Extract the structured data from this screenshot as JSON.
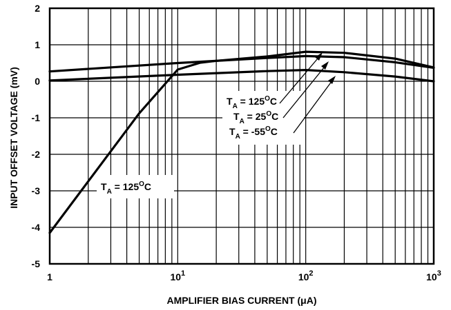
{
  "chart_data": {
    "type": "line",
    "title": "",
    "xlabel": "AMPLIFIER BIAS CURRENT (μA)",
    "ylabel": "INPUT OFFSET VOLTAGE (mV)",
    "x_scale": "log",
    "xlim": [
      1,
      1000
    ],
    "ylim": [
      -5,
      2
    ],
    "grid": true,
    "x_ticks": [
      {
        "value": 1,
        "base": "1",
        "exp": ""
      },
      {
        "value": 10,
        "base": "10",
        "exp": "1"
      },
      {
        "value": 100,
        "base": "10",
        "exp": "2"
      },
      {
        "value": 1000,
        "base": "10",
        "exp": "3"
      }
    ],
    "y_ticks": [
      2,
      1,
      0,
      -1,
      -2,
      -3,
      -4,
      -5
    ],
    "series": [
      {
        "x": [
          1,
          2,
          5,
          10,
          15,
          20,
          50,
          100,
          200,
          500,
          1000
        ],
        "y": [
          -4.15,
          -2.74,
          -0.88,
          0.32,
          0.51,
          0.56,
          0.68,
          0.81,
          0.78,
          0.62,
          0.38
        ]
      },
      {
        "x": [
          1,
          10,
          50,
          100,
          200,
          500,
          1000
        ],
        "y": [
          0.27,
          0.5,
          0.64,
          0.69,
          0.66,
          0.52,
          0.37
        ]
      },
      {
        "x": [
          1,
          10,
          50,
          100,
          200,
          500,
          1000
        ],
        "y": [
          0.02,
          0.18,
          0.28,
          0.31,
          0.25,
          0.13,
          0.0
        ]
      }
    ],
    "annotations": {
      "upper": [
        {
          "T": "T",
          "sub": "A",
          "eq": " = 125",
          "deg": "O",
          "unit": "C"
        },
        {
          "T": "T",
          "sub": "A",
          "eq": " = 25",
          "deg": "O",
          "unit": "C"
        },
        {
          "T": "T",
          "sub": "A",
          "eq": " = -55",
          "deg": "O",
          "unit": "C"
        }
      ],
      "lower": {
        "T": "T",
        "sub": "A",
        "eq": " = 125",
        "deg": "O",
        "unit": "C"
      }
    }
  }
}
